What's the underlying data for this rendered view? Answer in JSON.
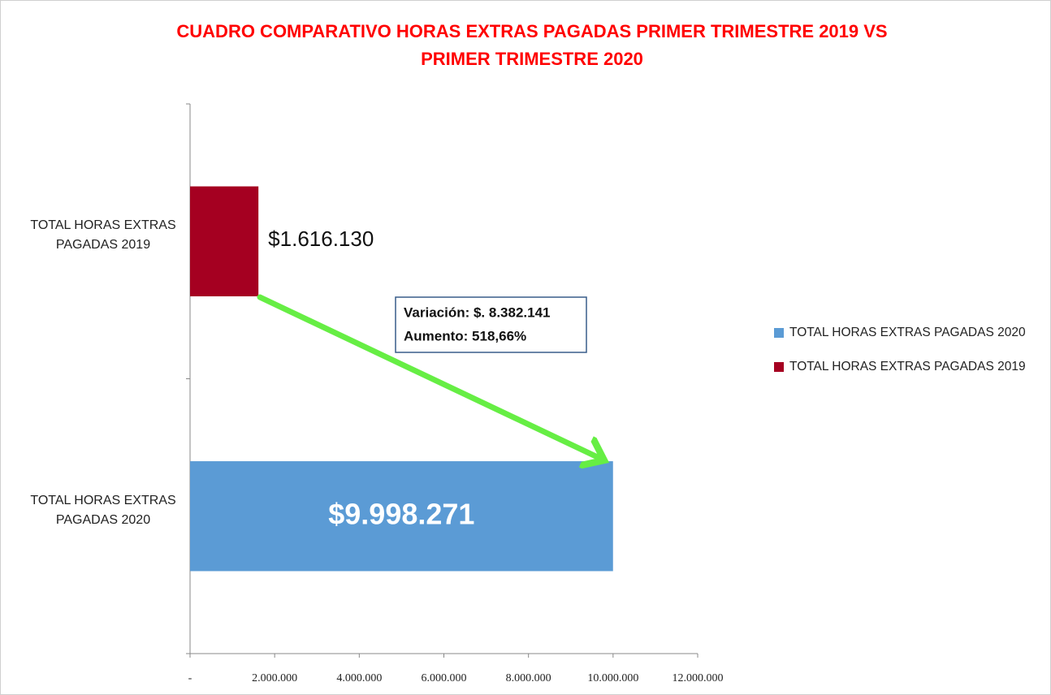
{
  "chart_data": {
    "type": "hbar",
    "title": "CUADRO COMPARATIVO HORAS EXTRAS PAGADAS PRIMER TRIMESTRE 2019 VS PRIMER TRIMESTRE 2020",
    "categories": [
      "TOTAL HORAS EXTRAS PAGADAS 2019",
      "TOTAL HORAS EXTRAS PAGADAS 2020"
    ],
    "series": [
      {
        "name": "TOTAL HORAS EXTRAS PAGADAS 2020",
        "color": "#5b9bd5",
        "values": [
          null,
          9998271
        ],
        "value_labels": [
          null,
          "$9.998.271"
        ]
      },
      {
        "name": "TOTAL HORAS EXTRAS PAGADAS 2019",
        "color": "#a50021",
        "values": [
          1616130,
          null
        ],
        "value_labels": [
          "$1.616.130",
          null
        ]
      }
    ],
    "xlim": [
      0,
      12000000
    ],
    "xticks": [
      {
        "value": 0,
        "label": "-"
      },
      {
        "value": 2000000,
        "label": "2.000.000"
      },
      {
        "value": 4000000,
        "label": "4.000.000"
      },
      {
        "value": 6000000,
        "label": "6.000.000"
      },
      {
        "value": 8000000,
        "label": "8.000.000"
      },
      {
        "value": 10000000,
        "label": "10.000.000"
      },
      {
        "value": 12000000,
        "label": "12.000.000"
      }
    ],
    "annotations": [
      "Variación: $. 8.382.141",
      "Aumento: 518,66%"
    ],
    "legend": "right"
  }
}
